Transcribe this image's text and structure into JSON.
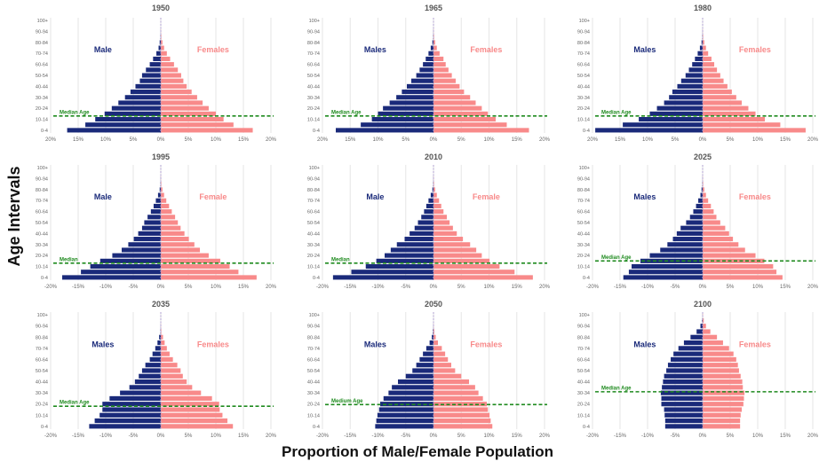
{
  "figure": {
    "y_axis_title": "Age Intervals",
    "x_axis_title": "Proportion of Male/Female Population",
    "colors": {
      "male": "#1a2a7a",
      "female": "#f88a8a",
      "median": "#1e8a1e",
      "center_line": "#b0a0d0",
      "grid": "#e6e6e6",
      "tick_text": "#666666",
      "title_text": "#555555"
    }
  },
  "chart_data": [
    {
      "type": "bar",
      "subtype": "population-pyramid",
      "title": "1950",
      "male_label": "Male",
      "female_label": "Females",
      "median_label": "Median Age",
      "categories": [
        "0-4",
        "5-9",
        "10-14",
        "15-19",
        "20-24",
        "25-29",
        "30-34",
        "35-39",
        "40-44",
        "45-49",
        "50-54",
        "55-59",
        "60-64",
        "65-69",
        "70-74",
        "75-79",
        "80-84",
        "85-89",
        "90-94",
        "95-99",
        "100+"
      ],
      "y_tick_labels": [
        "0-4",
        "10-14",
        "20-24",
        "30-34",
        "40-44",
        "50-54",
        "60-64",
        "70-74",
        "80-84",
        "90-94",
        "100+"
      ],
      "x_tick_labels": [
        "20%",
        "15%",
        "10%",
        "5%",
        "0%",
        "5%",
        "10%",
        "15%",
        "20%"
      ],
      "xlim": [
        -20,
        20
      ],
      "median_age_position": 15.5,
      "series": [
        {
          "name": "Male",
          "values": [
            17.0,
            13.7,
            11.9,
            10.2,
            8.9,
            7.7,
            6.5,
            5.5,
            4.6,
            3.8,
            3.4,
            2.7,
            2.0,
            1.4,
            0.8,
            0.4,
            0.2,
            0.05,
            0.02,
            0.0,
            0.0
          ]
        },
        {
          "name": "Females",
          "values": [
            16.7,
            13.2,
            11.4,
            10.0,
            8.7,
            7.6,
            6.6,
            5.6,
            4.7,
            4.1,
            3.7,
            3.1,
            2.4,
            1.7,
            1.1,
            0.6,
            0.3,
            0.1,
            0.03,
            0.0,
            0.0
          ]
        }
      ]
    },
    {
      "type": "bar",
      "subtype": "population-pyramid",
      "title": "1965",
      "male_label": "Males",
      "female_label": "Females",
      "median_label": "Median Age",
      "categories": [
        "0-4",
        "5-9",
        "10-14",
        "15-19",
        "20-24",
        "25-29",
        "30-34",
        "35-39",
        "40-44",
        "45-49",
        "50-54",
        "55-59",
        "60-64",
        "65-69",
        "70-74",
        "75-79",
        "80-84",
        "85-89",
        "90-94",
        "95-99",
        "100+"
      ],
      "y_tick_labels": [
        "0-4",
        "10-14",
        "20-24",
        "30-34",
        "40-44",
        "50-54",
        "60-64",
        "70-74",
        "80-84",
        "90-94",
        "100+"
      ],
      "x_tick_labels": [
        "20%",
        "15%",
        "10%",
        "5%",
        "0%",
        "5%",
        "10%",
        "15%",
        "20%"
      ],
      "xlim": [
        -20,
        20
      ],
      "median_age_position": 15.5,
      "series": [
        {
          "name": "Males",
          "values": [
            17.6,
            13.1,
            11.1,
            10.0,
            9.1,
            7.9,
            6.7,
            5.7,
            4.8,
            4.0,
            3.1,
            2.5,
            1.9,
            1.4,
            0.9,
            0.5,
            0.2,
            0.05,
            0.02,
            0.0,
            0.0
          ]
        },
        {
          "name": "Females",
          "values": [
            17.2,
            13.2,
            11.2,
            9.8,
            8.7,
            7.6,
            6.6,
            5.5,
            4.7,
            4.0,
            3.3,
            2.7,
            2.2,
            1.8,
            1.1,
            0.6,
            0.3,
            0.1,
            0.03,
            0.0,
            0.0
          ]
        }
      ]
    },
    {
      "type": "bar",
      "subtype": "population-pyramid",
      "title": "1980",
      "male_label": "Males",
      "female_label": "Females",
      "median_label": "Median Age",
      "categories": [
        "0-4",
        "5-9",
        "10-14",
        "15-19",
        "20-24",
        "25-29",
        "30-34",
        "35-39",
        "40-44",
        "45-49",
        "50-54",
        "55-59",
        "60-64",
        "65-69",
        "70-74",
        "75-79",
        "80-84",
        "85-89",
        "90-94",
        "95-99",
        "100+"
      ],
      "y_tick_labels": [
        "0-4",
        "10-14",
        "20-24",
        "30-34",
        "40-44",
        "50-54",
        "60-64",
        "70-74",
        "80-84",
        "90-94",
        "100+"
      ],
      "x_tick_labels": [
        "20%",
        "15%",
        "10%",
        "5%",
        "0%",
        "5%",
        "10%",
        "15%",
        "20%"
      ],
      "xlim": [
        -20,
        20
      ],
      "median_age_position": 15.5,
      "series": [
        {
          "name": "Males",
          "values": [
            19.5,
            14.5,
            11.6,
            9.6,
            8.3,
            7.0,
            6.1,
            5.5,
            4.6,
            3.9,
            3.1,
            2.5,
            1.9,
            1.4,
            0.9,
            0.5,
            0.2,
            0.05,
            0.02,
            0.0,
            0.0
          ]
        },
        {
          "name": "Females",
          "values": [
            18.7,
            14.1,
            11.3,
            9.6,
            8.3,
            7.1,
            6.1,
            5.3,
            4.5,
            3.8,
            3.2,
            2.6,
            2.1,
            1.6,
            1.0,
            0.6,
            0.3,
            0.1,
            0.03,
            0.0,
            0.0
          ]
        }
      ]
    },
    {
      "type": "bar",
      "subtype": "population-pyramid",
      "title": "1995",
      "male_label": "Male",
      "female_label": "Female",
      "median_label": "Median",
      "categories": [
        "0-4",
        "5-9",
        "10-14",
        "15-19",
        "20-24",
        "25-29",
        "30-34",
        "35-39",
        "40-44",
        "45-49",
        "50-54",
        "55-59",
        "60-64",
        "65-69",
        "70-74",
        "75-79",
        "80-84",
        "85-89",
        "90-94",
        "95-99",
        "100+"
      ],
      "y_tick_labels": [
        "0-4",
        "10-14",
        "20-24",
        "30-34",
        "40-44",
        "50-54",
        "60-64",
        "70-74",
        "80-84",
        "90-94",
        "100+"
      ],
      "x_tick_labels": [
        "-20%",
        "-15%",
        "-10%",
        "-5%",
        "0%",
        "5%",
        "10%",
        "15%",
        "20%"
      ],
      "xlim": [
        -20,
        20
      ],
      "median_age_position": 15.5,
      "series": [
        {
          "name": "Male",
          "values": [
            17.9,
            14.5,
            12.8,
            11.0,
            8.8,
            7.1,
            5.9,
            4.9,
            4.1,
            3.4,
            3.0,
            2.4,
            1.8,
            1.3,
            0.9,
            0.5,
            0.2,
            0.05,
            0.02,
            0.0,
            0.0
          ]
        },
        {
          "name": "Female",
          "values": [
            17.4,
            14.1,
            12.5,
            10.8,
            8.7,
            7.1,
            6.1,
            5.1,
            4.3,
            3.6,
            3.1,
            2.6,
            2.0,
            1.5,
            1.0,
            0.6,
            0.3,
            0.1,
            0.03,
            0.0,
            0.0
          ]
        }
      ]
    },
    {
      "type": "bar",
      "subtype": "population-pyramid",
      "title": "2010",
      "male_label": "Male",
      "female_label": "Female",
      "median_label": "Median",
      "categories": [
        "0-4",
        "5-9",
        "10-14",
        "15-19",
        "20-24",
        "25-29",
        "30-34",
        "35-39",
        "40-44",
        "45-49",
        "50-54",
        "55-59",
        "60-64",
        "65-69",
        "70-74",
        "75-79",
        "80-84",
        "85-89",
        "90-94",
        "95-99",
        "100+"
      ],
      "y_tick_labels": [
        "0-4",
        "10-14",
        "20-24",
        "30-34",
        "40-44",
        "50-54",
        "60-64",
        "70-74",
        "80-84",
        "90-94",
        "100+"
      ],
      "x_tick_labels": [
        "-20%",
        "-15%",
        "-10%",
        "-5%",
        "0%",
        "5%",
        "10%",
        "15%",
        "20%"
      ],
      "xlim": [
        -20,
        20
      ],
      "median_age_position": 15.5,
      "series": [
        {
          "name": "Male",
          "values": [
            18.1,
            14.8,
            12.2,
            10.3,
            8.8,
            7.7,
            6.6,
            5.2,
            4.3,
            3.4,
            2.8,
            2.2,
            1.7,
            1.3,
            0.9,
            0.5,
            0.2,
            0.05,
            0.02,
            0.0,
            0.0
          ]
        },
        {
          "name": "Female",
          "values": [
            17.9,
            14.6,
            11.9,
            10.1,
            8.7,
            7.7,
            6.6,
            5.3,
            4.2,
            3.5,
            2.9,
            2.4,
            1.8,
            1.4,
            1.0,
            0.6,
            0.3,
            0.1,
            0.03,
            0.0,
            0.0
          ]
        }
      ]
    },
    {
      "type": "bar",
      "subtype": "population-pyramid",
      "title": "2025",
      "male_label": "Males",
      "female_label": "Females",
      "median_label": "Median Age",
      "categories": [
        "0-4",
        "5-9",
        "10-14",
        "15-19",
        "20-24",
        "25-29",
        "30-34",
        "35-39",
        "40-44",
        "45-49",
        "50-54",
        "55-59",
        "60-64",
        "65-69",
        "70-74",
        "75-79",
        "80-84",
        "85-89",
        "90-94",
        "95-99",
        "100+"
      ],
      "y_tick_labels": [
        "0-4",
        "10-14",
        "20-24",
        "30-34",
        "40-44",
        "50-54",
        "60-64",
        "70-74",
        "80-84",
        "90-94",
        "100+"
      ],
      "x_tick_labels": [
        "-20%",
        "-15%",
        "-10%",
        "-5%",
        "0%",
        "5%",
        "10%",
        "15%",
        "20%"
      ],
      "xlim": [
        -20,
        20
      ],
      "median_age_position": 17.5,
      "series": [
        {
          "name": "Males",
          "values": [
            14.4,
            13.4,
            12.9,
            11.3,
            9.6,
            7.7,
            6.4,
            5.4,
            4.7,
            4.0,
            3.0,
            2.3,
            1.7,
            1.2,
            0.8,
            0.4,
            0.2,
            0.05,
            0.02,
            0.0,
            0.0
          ]
        },
        {
          "name": "Females",
          "values": [
            14.5,
            13.4,
            12.8,
            11.2,
            9.6,
            7.7,
            6.5,
            5.5,
            4.8,
            4.1,
            3.2,
            2.5,
            2.0,
            1.5,
            1.0,
            0.6,
            0.3,
            0.1,
            0.03,
            0.0,
            0.0
          ]
        }
      ]
    },
    {
      "type": "bar",
      "subtype": "population-pyramid",
      "title": "2035",
      "male_label": "Males",
      "female_label": "Females",
      "median_label": "Median Age",
      "categories": [
        "0-4",
        "5-9",
        "10-14",
        "15-19",
        "20-24",
        "25-29",
        "30-34",
        "35-39",
        "40-44",
        "45-49",
        "50-54",
        "55-59",
        "60-64",
        "65-69",
        "70-74",
        "75-79",
        "80-84",
        "85-89",
        "90-94",
        "95-99",
        "100+"
      ],
      "y_tick_labels": [
        "0-4",
        "10-14",
        "20-24",
        "30-34",
        "40-44",
        "50-54",
        "60-64",
        "70-74",
        "80-84",
        "90-94",
        "100+"
      ],
      "x_tick_labels": [
        "-20%",
        "-15%",
        "-10%",
        "-5%",
        "0%",
        "5%",
        "10%",
        "15%",
        "20%"
      ],
      "xlim": [
        -20,
        20
      ],
      "median_age_position": 20.5,
      "series": [
        {
          "name": "Males",
          "values": [
            13.0,
            12.0,
            11.1,
            10.6,
            10.6,
            9.3,
            7.4,
            5.7,
            4.7,
            4.0,
            3.4,
            2.8,
            2.0,
            1.5,
            1.0,
            0.6,
            0.3,
            0.05,
            0.02,
            0.0,
            0.0
          ]
        },
        {
          "name": "Females",
          "values": [
            13.1,
            12.1,
            11.2,
            10.7,
            10.6,
            9.3,
            7.3,
            5.7,
            4.7,
            4.0,
            3.6,
            3.0,
            2.2,
            1.6,
            1.1,
            0.7,
            0.4,
            0.1,
            0.03,
            0.0,
            0.0
          ]
        }
      ]
    },
    {
      "type": "bar",
      "subtype": "population-pyramid",
      "title": "2050",
      "male_label": "Males",
      "female_label": "Females",
      "median_label": "Medium Age",
      "categories": [
        "0-4",
        "5-9",
        "10-14",
        "15-19",
        "20-24",
        "25-29",
        "30-34",
        "35-39",
        "40-44",
        "45-49",
        "50-54",
        "55-59",
        "60-64",
        "65-69",
        "70-74",
        "75-79",
        "80-84",
        "85-89",
        "90-94",
        "95-99",
        "100+"
      ],
      "y_tick_labels": [
        "0-4",
        "10-14",
        "20-24",
        "30-34",
        "40-44",
        "50-54",
        "60-64",
        "70-74",
        "80-84",
        "90-94",
        "100+"
      ],
      "x_tick_labels": [
        "-20%",
        "-15%",
        "-10%",
        "-5%",
        "0%",
        "5%",
        "10%",
        "15%",
        "20%"
      ],
      "xlim": [
        -20,
        20
      ],
      "median_age_position": 22.0,
      "series": [
        {
          "name": "Males",
          "values": [
            10.5,
            10.3,
            10.1,
            9.8,
            9.6,
            9.0,
            8.1,
            7.5,
            6.4,
            5.0,
            3.8,
            3.1,
            2.5,
            1.9,
            1.3,
            0.7,
            0.3,
            0.1,
            0.02,
            0.0,
            0.0
          ]
        },
        {
          "name": "Females",
          "values": [
            10.6,
            10.3,
            10.1,
            9.8,
            9.6,
            8.9,
            8.1,
            7.5,
            6.4,
            5.0,
            3.9,
            3.2,
            2.6,
            2.1,
            1.5,
            0.8,
            0.4,
            0.15,
            0.03,
            0.0,
            0.0
          ]
        }
      ]
    },
    {
      "type": "bar",
      "subtype": "population-pyramid",
      "title": "2100",
      "male_label": "Males",
      "female_label": "Females",
      "median_label": "Median Age",
      "categories": [
        "0-4",
        "5-9",
        "10-14",
        "15-19",
        "20-24",
        "25-29",
        "30-34",
        "35-39",
        "40-44",
        "45-49",
        "50-54",
        "55-59",
        "60-64",
        "65-69",
        "70-74",
        "75-79",
        "80-84",
        "85-89",
        "90-94",
        "95-99",
        "100+"
      ],
      "y_tick_labels": [
        "0-4",
        "10-14",
        "20-24",
        "30-34",
        "40-44",
        "50-54",
        "60-64",
        "70-74",
        "80-84",
        "90-94",
        "100+"
      ],
      "x_tick_labels": [
        "-20%",
        "-15%",
        "-10%",
        "-5%",
        "0%",
        "5%",
        "10%",
        "15%",
        "20%"
      ],
      "xlim": [
        -20,
        20
      ],
      "median_age_position": 33.5,
      "series": [
        {
          "name": "Males",
          "values": [
            6.8,
            6.8,
            6.9,
            7.0,
            7.5,
            7.5,
            7.6,
            7.4,
            7.2,
            7.0,
            6.6,
            6.3,
            5.8,
            5.3,
            4.4,
            3.4,
            2.2,
            1.1,
            0.4,
            0.1,
            0.02
          ]
        },
        {
          "name": "Females",
          "values": [
            6.8,
            6.8,
            6.9,
            7.1,
            7.4,
            7.5,
            7.6,
            7.3,
            7.2,
            6.9,
            6.6,
            6.4,
            6.1,
            5.6,
            4.8,
            3.7,
            2.6,
            1.4,
            0.6,
            0.2,
            0.05
          ]
        }
      ]
    }
  ]
}
